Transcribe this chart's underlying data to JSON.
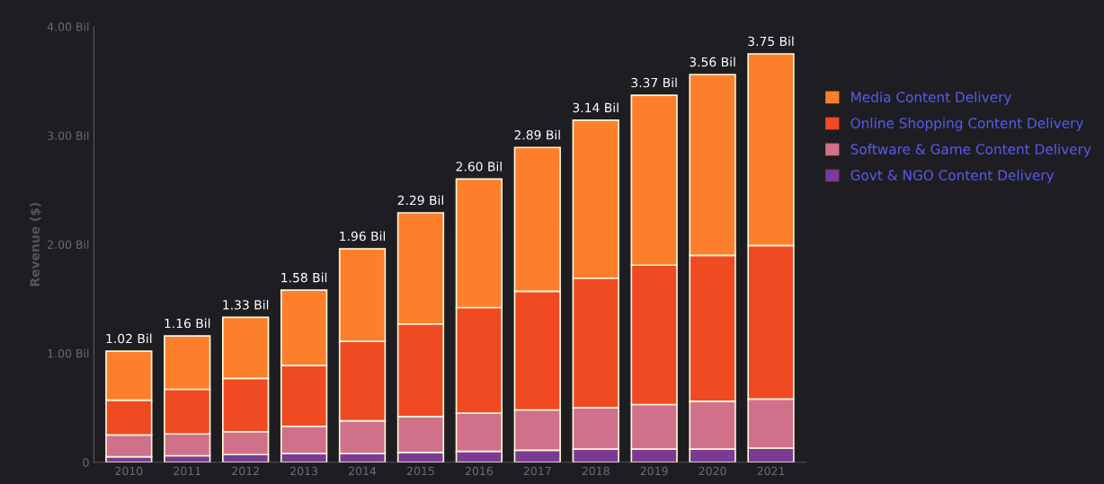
{
  "chart_data": {
    "type": "bar",
    "stacked": true,
    "ylabel": "Revenue ($)",
    "categories": [
      "2010",
      "2011",
      "2012",
      "2013",
      "2014",
      "2015",
      "2016",
      "2017",
      "2018",
      "2019",
      "2020",
      "2021"
    ],
    "series": [
      {
        "name": "Govt & NGO Content Delivery",
        "color": "#7b3b94",
        "values": [
          0.05,
          0.06,
          0.07,
          0.08,
          0.08,
          0.09,
          0.1,
          0.11,
          0.12,
          0.12,
          0.12,
          0.13
        ]
      },
      {
        "name": "Software & Game Content Delivery",
        "color": "#d0708a",
        "values": [
          0.2,
          0.2,
          0.21,
          0.25,
          0.3,
          0.33,
          0.35,
          0.37,
          0.38,
          0.41,
          0.44,
          0.45
        ]
      },
      {
        "name": "Online Shopping Content Delivery",
        "color": "#f04a22",
        "values": [
          0.32,
          0.41,
          0.49,
          0.56,
          0.73,
          0.85,
          0.97,
          1.09,
          1.19,
          1.28,
          1.34,
          1.41
        ]
      },
      {
        "name": "Media Content Delivery",
        "color": "#fd7f2c",
        "values": [
          0.45,
          0.49,
          0.56,
          0.69,
          0.85,
          1.02,
          1.18,
          1.32,
          1.45,
          1.56,
          1.66,
          1.76
        ]
      }
    ],
    "totals": [
      "1.02 Bil",
      "1.16 Bil",
      "1.33 Bil",
      "1.58 Bil",
      "1.96 Bil",
      "2.29 Bil",
      "2.60 Bil",
      "2.89 Bil",
      "3.14 Bil",
      "3.37 Bil",
      "3.56 Bil",
      "3.75 Bil"
    ],
    "ylim": [
      0,
      4
    ],
    "yticks": [
      0,
      {
        "value": 1,
        "label": "1.00 Bil"
      },
      {
        "value": 2,
        "label": "2.00 Bil"
      },
      {
        "value": 3,
        "label": "3.00 Bil"
      },
      {
        "value": 4,
        "label": "4.00 Bil"
      }
    ],
    "grid": false,
    "legend": "right"
  }
}
